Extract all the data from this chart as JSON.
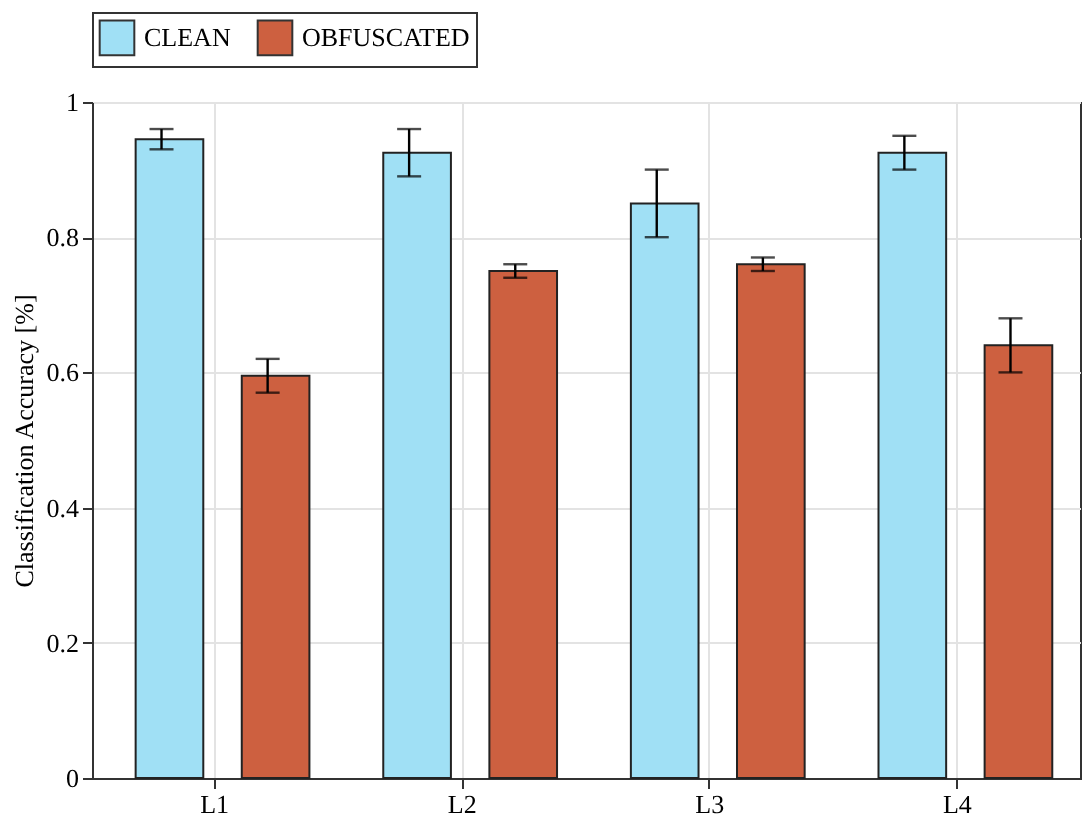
{
  "chart_data": {
    "type": "bar",
    "ylabel": "Classification Accuracy [%]",
    "categories": [
      "L1",
      "L2",
      "L3",
      "L4"
    ],
    "series": [
      {
        "name": "CLEAN",
        "color": "#a0e0f5",
        "values": [
          0.945,
          0.925,
          0.85,
          0.925
        ],
        "errors": [
          0.015,
          0.035,
          0.05,
          0.025
        ]
      },
      {
        "name": "OBFUSCATED",
        "color": "#cd6040",
        "values": [
          0.595,
          0.75,
          0.76,
          0.64
        ],
        "errors": [
          0.025,
          0.01,
          0.01,
          0.04
        ]
      }
    ],
    "ylim": [
      0,
      1
    ],
    "yticks": [
      0,
      0.2,
      0.4,
      0.6,
      0.8,
      1
    ],
    "grid": true,
    "legend": "top"
  }
}
